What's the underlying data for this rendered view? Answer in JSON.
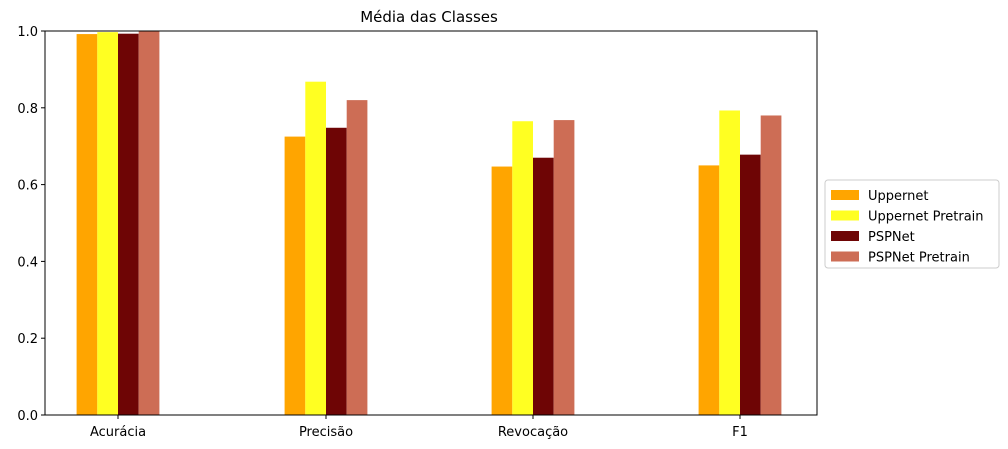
{
  "chart_data": {
    "type": "bar",
    "title": "Média das Classes",
    "xlabel": "",
    "ylabel": "",
    "categories": [
      "Acurácia",
      "Precisão",
      "Revocação",
      "F1"
    ],
    "ylim": [
      0,
      1.0
    ],
    "yticks": [
      "0.0",
      "0.2",
      "0.4",
      "0.6",
      "0.8",
      "1.0"
    ],
    "grid": false,
    "legend_position": "center-right-outside",
    "series": [
      {
        "name": "Uppernet",
        "color": "#ffa500",
        "values": [
          0.992,
          0.725,
          0.647,
          0.65
        ]
      },
      {
        "name": "Uppernet Pretrain",
        "color": "#ffff22",
        "values": [
          0.997,
          0.868,
          0.765,
          0.793
        ]
      },
      {
        "name": "PSPNet",
        "color": "#6e0505",
        "values": [
          0.993,
          0.748,
          0.67,
          0.678
        ]
      },
      {
        "name": "PSPNet Pretrain",
        "color": "#cd6d55",
        "values": [
          0.999,
          0.82,
          0.768,
          0.78
        ]
      }
    ]
  }
}
